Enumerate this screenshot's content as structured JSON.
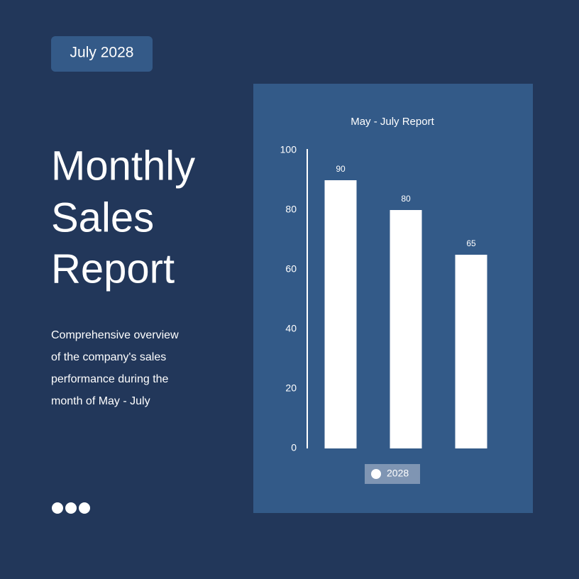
{
  "header": {
    "badge": "July 2028",
    "title": [
      "Monthly",
      "Sales",
      "Report"
    ],
    "description": [
      "Comprehensive overview",
      "of the company's sales",
      "performance during the",
      "month of May - July"
    ]
  },
  "chart_data": {
    "type": "bar",
    "title": "May - July Report",
    "series": [
      {
        "name": "2028",
        "color": "#ffffff",
        "values": [
          90,
          80,
          65
        ]
      }
    ],
    "ylim": [
      0,
      100
    ],
    "yticks": [
      0,
      20,
      40,
      60,
      80,
      100
    ],
    "grid": false
  }
}
